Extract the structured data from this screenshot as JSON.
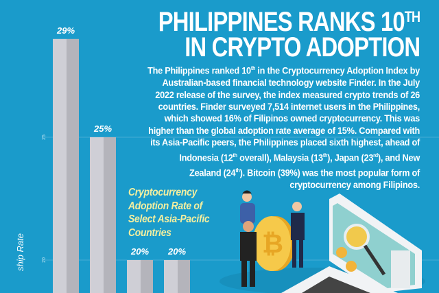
{
  "headline": {
    "line1": "PHILIPPINES RANKS 10",
    "line1_sup": "TH",
    "line2": "IN CRYPTO ADOPTION"
  },
  "body_lines": [
    "The Philippines ranked 10|th| in the Cryptocurrency Adoption Index by",
    "Australian-based financial technology website Finder. In the July",
    "2022 release of the survey, the index measured crypto trends of 26",
    "countries. Finder surveyed 7,514 internet users in the Philippines,",
    "which showed 16% of Filipinos owned cryptocurrency. This was",
    "higher than the global adoption rate average of 15%. Compared with",
    "its Asia-Pacific peers, the Philippines placed sixth highest, ahead of",
    "Indonesia (12|th| overall), Malaysia (13|th|), Japan (23|rd|), and New",
    "Zealand (24|th|). Bitcoin (39%) was the most popular form of",
    "cryptocurrency among Filipinos."
  ],
  "chart_data": {
    "type": "bar",
    "title": [
      "Cryptocurrency",
      "Adoption Rate of",
      "Select Asia-Pacific",
      "Countries"
    ],
    "ylabel": "ship Rate",
    "values": [
      29,
      25,
      20,
      20
    ],
    "data_labels": [
      "29%",
      "25%",
      "20%",
      "20%"
    ],
    "yticks": [
      20,
      25
    ],
    "grid": true,
    "colors": {
      "bar_light": "#cfcfd6",
      "bar_dark": "#b4b4bb",
      "background": "#1a9bcb",
      "title": "#f3efa0"
    }
  }
}
